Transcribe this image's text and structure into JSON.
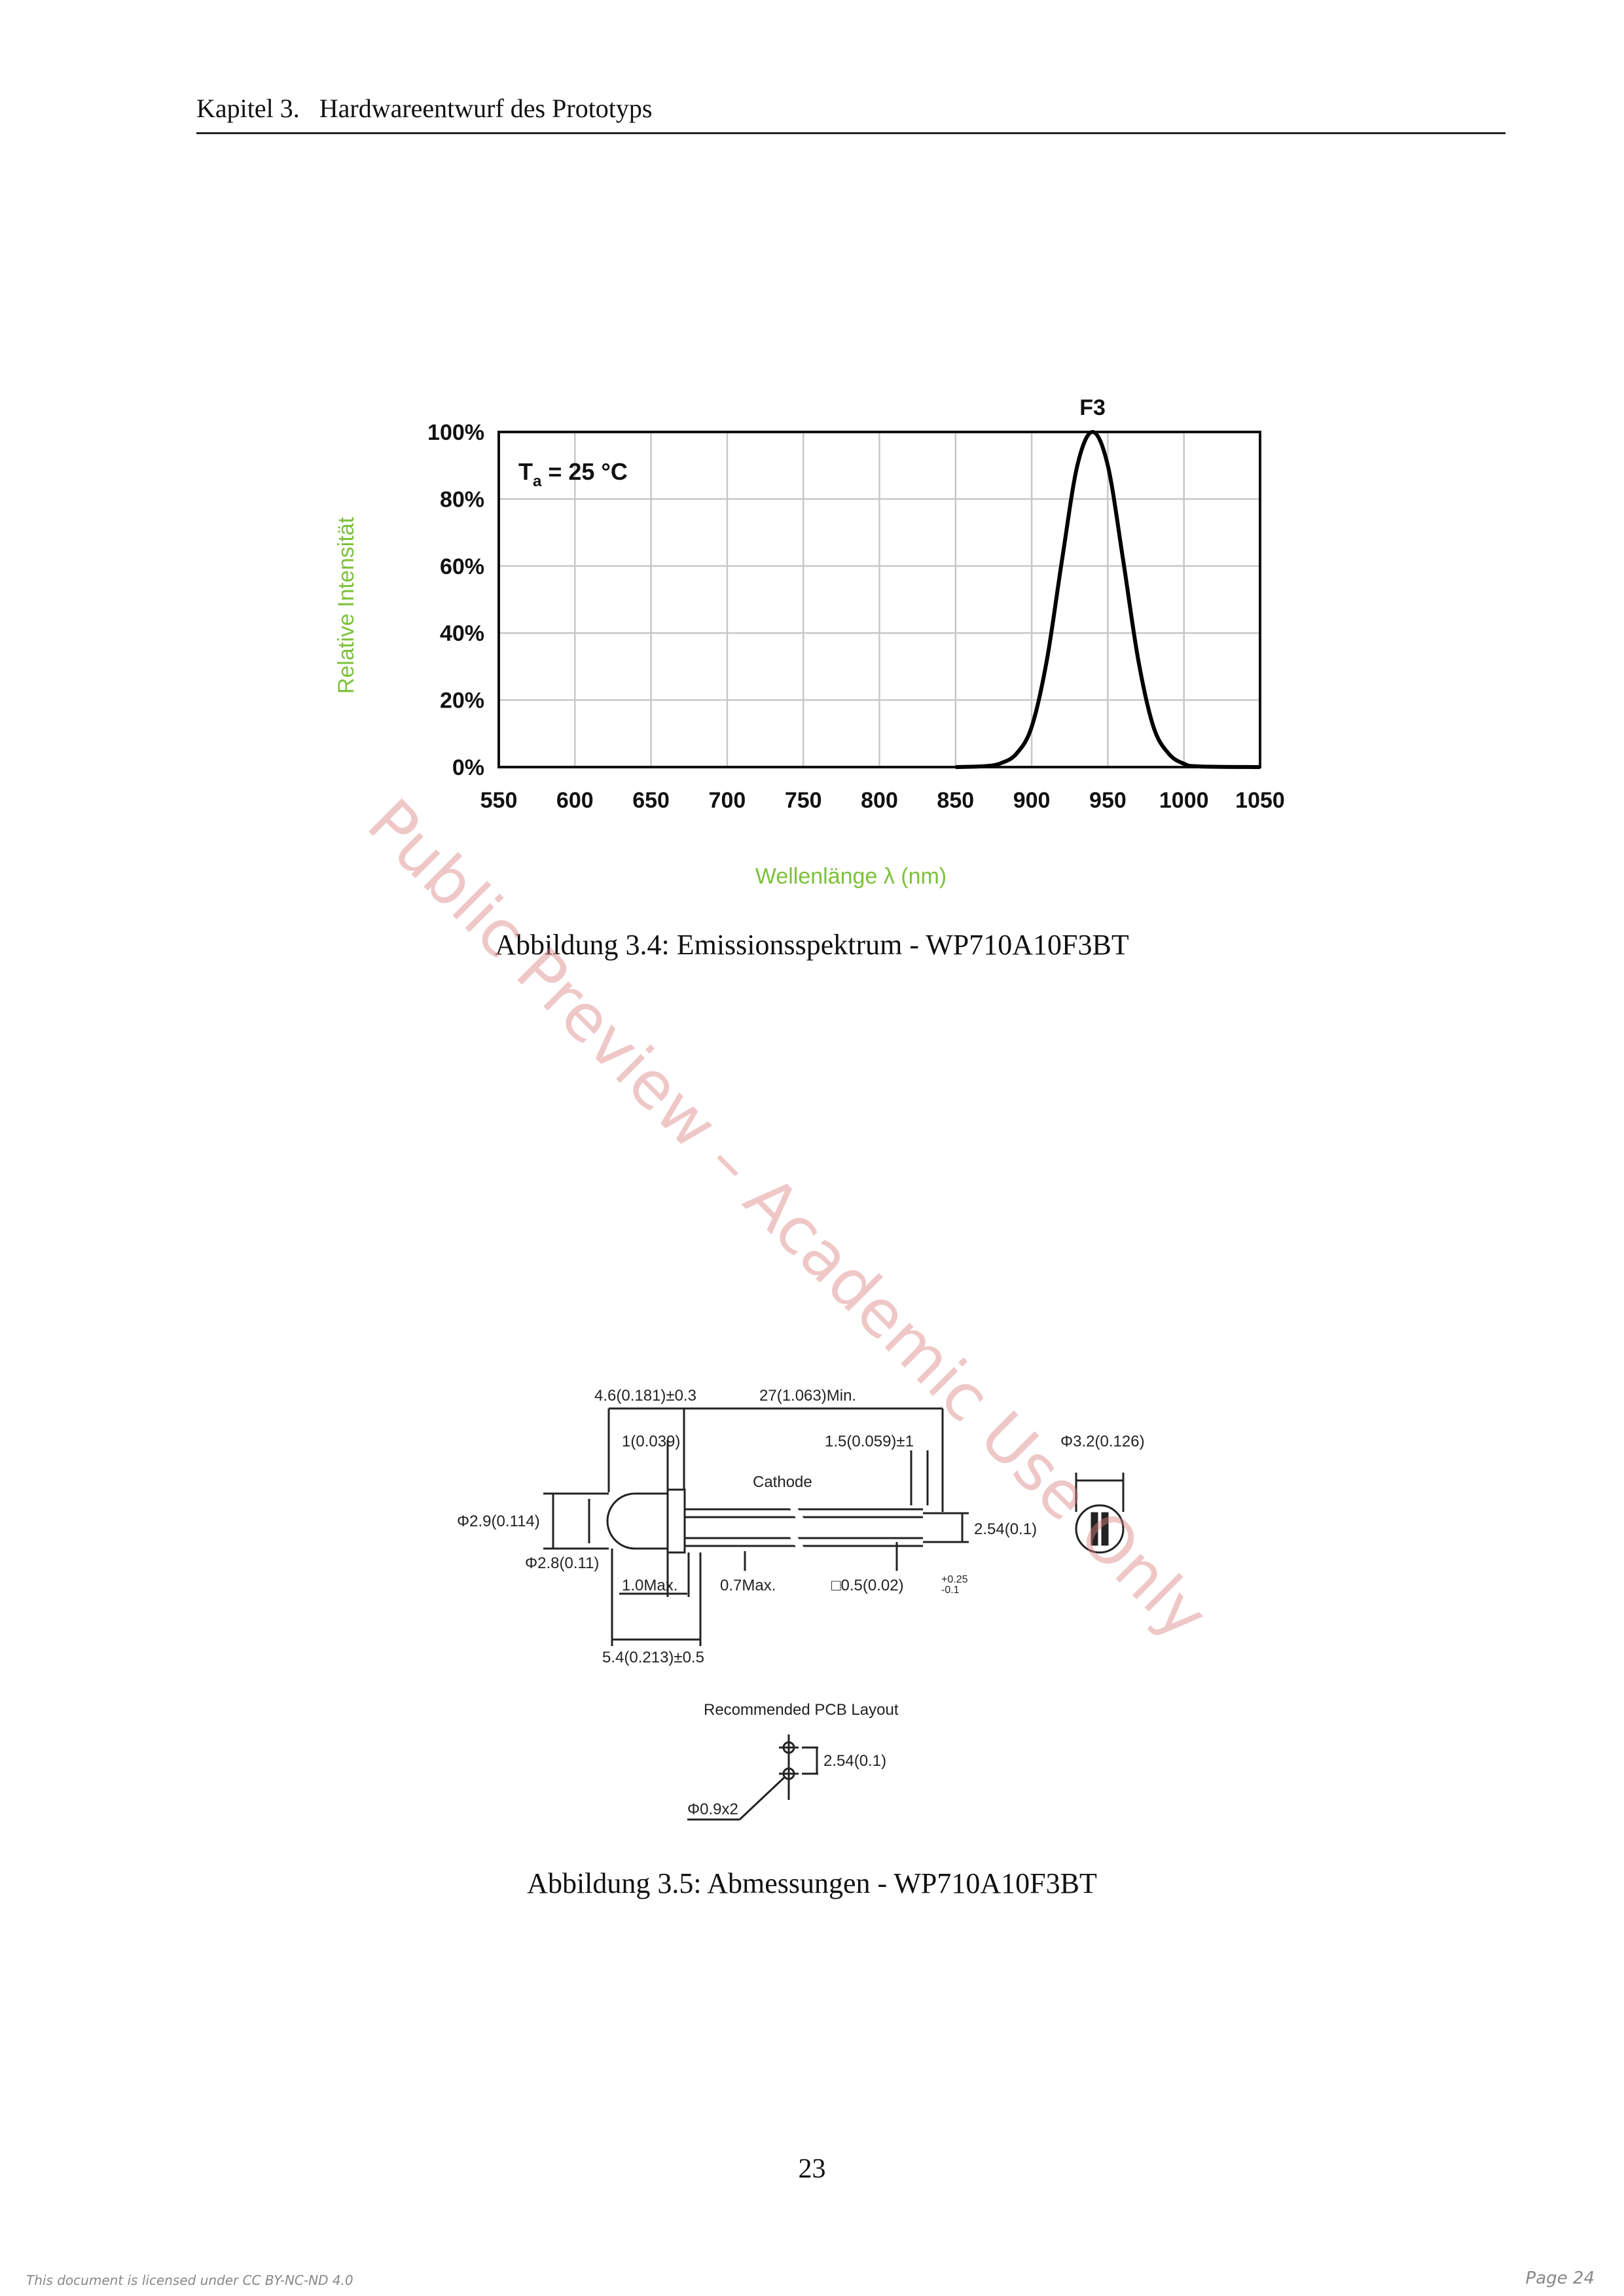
{
  "header": {
    "chapter": "Kapitel 3.",
    "title": "Hardwareentwurf des Prototyps"
  },
  "figure1": {
    "caption": "Abbildung 3.4: Emissionsspektrum - WP710A10F3BT",
    "chart_data": {
      "type": "line",
      "title": "",
      "xlabel": "Wellenlänge   λ (nm)",
      "ylabel": "Relative Intensität",
      "annotation_condition": "Ta = 25 °C",
      "xlim": [
        550,
        1050
      ],
      "ylim": [
        0,
        100
      ],
      "x_ticks": [
        550,
        600,
        650,
        700,
        750,
        800,
        850,
        900,
        950,
        1000,
        1050
      ],
      "y_ticks": [
        "0%",
        "20%",
        "40%",
        "60%",
        "80%",
        "100%"
      ],
      "grid": true,
      "series": [
        {
          "name": "F3",
          "x": [
            850,
            870,
            880,
            890,
            900,
            910,
            920,
            930,
            940,
            950,
            960,
            970,
            980,
            990,
            1000,
            1010,
            1050
          ],
          "y": [
            0,
            0.3,
            1.2,
            4,
            12,
            32,
            62,
            90,
            100,
            90,
            62,
            32,
            12,
            4,
            1,
            0.2,
            0
          ]
        }
      ]
    }
  },
  "figure2": {
    "caption": "Abbildung 3.5: Abmessungen - WP710A10F3BT",
    "labels": {
      "d1": "4.6(0.181)±0.3",
      "d2": "27(1.063)Min.",
      "d3": "1(0.039)",
      "d4": "1.5(0.059)±1",
      "d5": "Φ3.2(0.126)",
      "cathode": "Cathode",
      "d6": "Φ2.9(0.114)",
      "d7": "2.54(0.1)",
      "d8": "Φ2.8(0.11)",
      "d9": "1.0Max.",
      "d10": "0.7Max.",
      "d11": "□0.5(0.02)",
      "d11_sup": "+0.25",
      "d11_sub": "-0.1",
      "d12": "5.4(0.213)±0.5",
      "pcb_title": "Recommended PCB Layout",
      "pcb_pitch": "2.54(0.1)",
      "pcb_hole": "Φ0.9x2"
    }
  },
  "page_number": "23",
  "watermark": "Public Preview – Academic Use Only",
  "footer": {
    "license": "This document is licensed under CC BY-NC-ND 4.0",
    "page": "Page 24"
  }
}
